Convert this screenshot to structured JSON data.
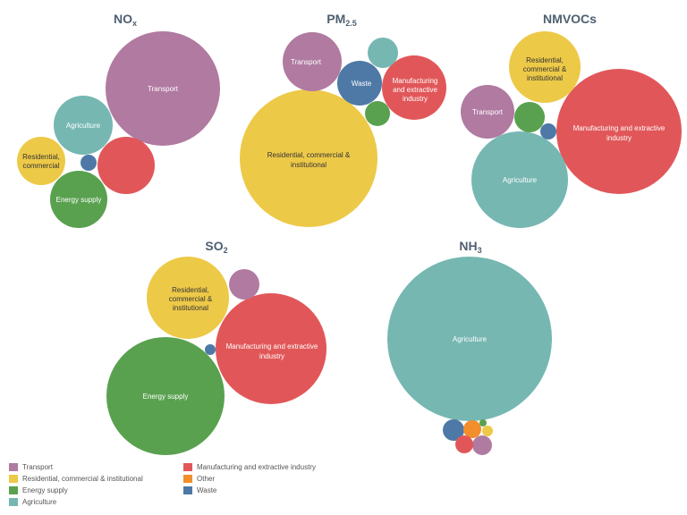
{
  "chart_data": [
    {
      "type": "packed-bubble",
      "title": "NOx",
      "title_main": "NO",
      "title_sub": "x",
      "bubbles": [
        {
          "category": "Transport",
          "label": "Transport",
          "relative_size": 1.0
        },
        {
          "category": "Agriculture",
          "label": "Agriculture",
          "relative_size": 0.27
        },
        {
          "category": "Manufacturing and extractive industry",
          "label": "",
          "relative_size": 0.26
        },
        {
          "category": "Residential, commercial & institutional",
          "label": "Residential, commercial",
          "relative_size": 0.19
        },
        {
          "category": "Energy supply",
          "label": "Energy supply",
          "relative_size": 0.25
        },
        {
          "category": "Waste",
          "label": "",
          "relative_size": 0.02
        }
      ]
    },
    {
      "type": "packed-bubble",
      "title": "PM2.5",
      "title_main": "PM",
      "title_sub": "2.5",
      "bubbles": [
        {
          "category": "Residential, commercial & institutional",
          "label": "Residential, commercial & institutional",
          "relative_size": 1.0
        },
        {
          "category": "Transport",
          "label": "Transport",
          "relative_size": 0.19
        },
        {
          "category": "Waste",
          "label": "Waste",
          "relative_size": 0.11
        },
        {
          "category": "Manufacturing and extractive industry",
          "label": "Manufacturing and extractive industry",
          "relative_size": 0.22
        },
        {
          "category": "Agriculture",
          "label": "",
          "relative_size": 0.05
        },
        {
          "category": "Energy supply",
          "label": "",
          "relative_size": 0.03
        }
      ]
    },
    {
      "type": "packed-bubble",
      "title": "NMVOCs",
      "bubbles": [
        {
          "category": "Manufacturing and extractive industry",
          "label": "Manufacturing and extractive industry",
          "relative_size": 1.0
        },
        {
          "category": "Agriculture",
          "label": "Agriculture",
          "relative_size": 0.59
        },
        {
          "category": "Residential, commercial & institutional",
          "label": "Residential, commercial & institutional",
          "relative_size": 0.34
        },
        {
          "category": "Transport",
          "label": "Transport",
          "relative_size": 0.19
        },
        {
          "category": "Energy supply",
          "label": "",
          "relative_size": 0.06
        },
        {
          "category": "Waste",
          "label": "",
          "relative_size": 0.02
        }
      ]
    },
    {
      "type": "packed-bubble",
      "title": "SO2",
      "title_main": "SO",
      "title_sub": "2",
      "bubbles": [
        {
          "category": "Energy supply",
          "label": "Energy supply",
          "relative_size": 1.0
        },
        {
          "category": "Manufacturing and extractive industry",
          "label": "Manufacturing and extractive industry",
          "relative_size": 0.88
        },
        {
          "category": "Residential, commercial & institutional",
          "label": "Residential, commercial & institutional",
          "relative_size": 0.49
        },
        {
          "category": "Transport",
          "label": "",
          "relative_size": 0.07
        },
        {
          "category": "Waste",
          "label": "",
          "relative_size": 0.01
        }
      ]
    },
    {
      "type": "packed-bubble",
      "title": "NH3",
      "title_main": "NH",
      "title_sub": "3",
      "bubbles": [
        {
          "category": "Agriculture",
          "label": "Agriculture",
          "relative_size": 1.0
        },
        {
          "category": "Waste",
          "label": "",
          "relative_size": 0.02
        },
        {
          "category": "Other",
          "label": "",
          "relative_size": 0.016
        },
        {
          "category": "Transport",
          "label": "",
          "relative_size": 0.019
        },
        {
          "category": "Manufacturing and extractive industry",
          "label": "",
          "relative_size": 0.016
        },
        {
          "category": "Residential, commercial & institutional",
          "label": "",
          "relative_size": 0.006
        },
        {
          "category": "Energy supply",
          "label": "",
          "relative_size": 0.002
        }
      ]
    }
  ],
  "legend": [
    {
      "label": "Transport",
      "color": "#b07aa1"
    },
    {
      "label": "Residential, commercial & institutional",
      "color": "#edc948"
    },
    {
      "label": "Energy supply",
      "color": "#59a14f"
    },
    {
      "label": "Agriculture",
      "color": "#76b7b2"
    },
    {
      "label": "Manufacturing and extractive industry",
      "color": "#e15759"
    },
    {
      "label": "Other",
      "color": "#f28e2b"
    },
    {
      "label": "Waste",
      "color": "#4e79a7"
    }
  ],
  "colors": {
    "Transport": "#b07aa1",
    "Residential, commercial & institutional": "#edc948",
    "Energy supply": "#59a14f",
    "Agriculture": "#76b7b2",
    "Manufacturing and extractive industry": "#e15759",
    "Other": "#f28e2b",
    "Waste": "#4e79a7"
  }
}
